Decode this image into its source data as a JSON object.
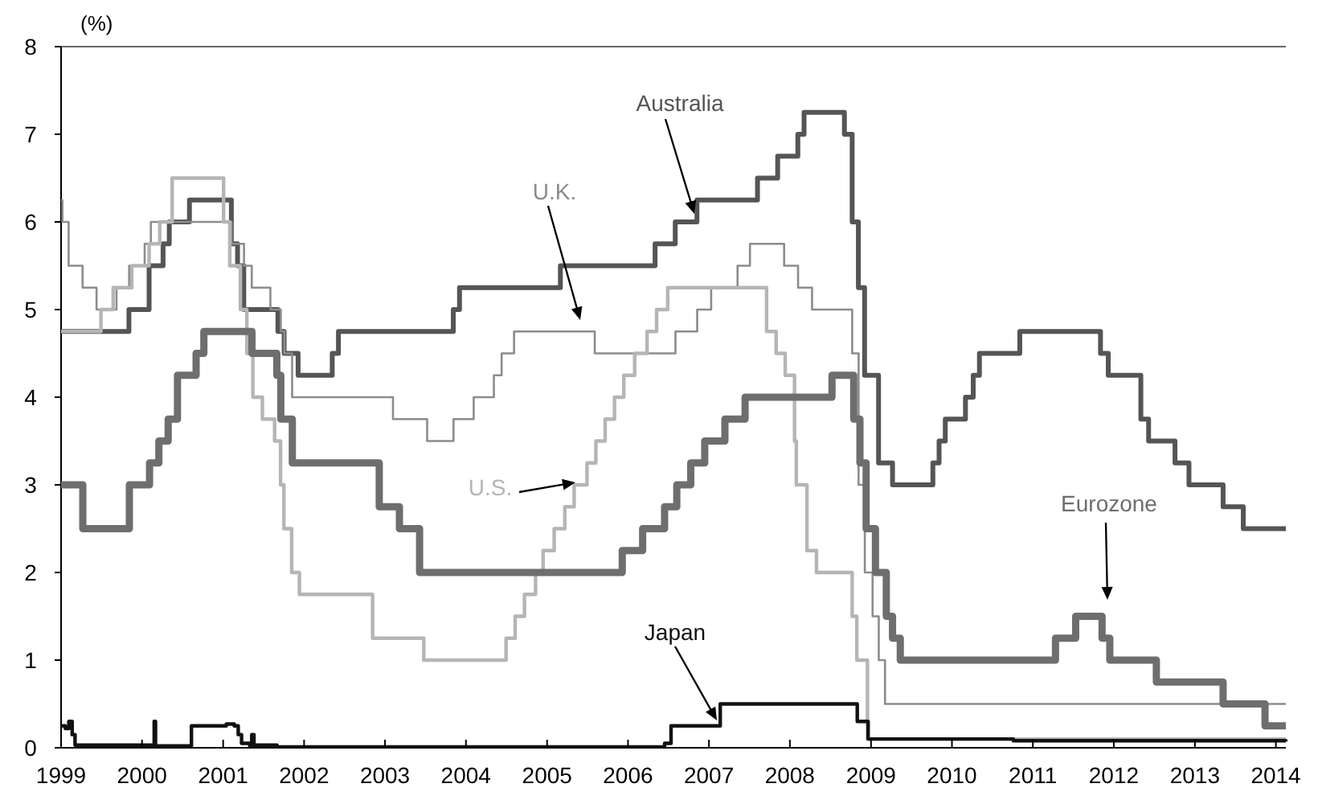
{
  "chart_data": {
    "type": "step",
    "ylabel": "(%)",
    "xlim": [
      "1999-01-01",
      "2014-02-15"
    ],
    "xticks": [
      "1999",
      "2000",
      "2001",
      "2002",
      "2003",
      "2004",
      "2005",
      "2006",
      "2007",
      "2008",
      "2009",
      "2010",
      "2011",
      "2012",
      "2013",
      "2014"
    ],
    "ylim": [
      0,
      8
    ],
    "yticks": [
      0,
      1,
      2,
      3,
      4,
      5,
      6,
      7,
      8
    ],
    "grid": false,
    "marker": "none",
    "line_style": "solid",
    "series": [
      {
        "name": "Australia",
        "color": "#555555",
        "x": [
          "1999-01-01",
          "1999-11-03",
          "2000-02-02",
          "2000-04-05",
          "2000-05-03",
          "2000-08-02",
          "2001-02-07",
          "2001-03-07",
          "2001-04-04",
          "2001-09-05",
          "2001-10-03",
          "2001-12-05",
          "2002-05-08",
          "2002-06-05",
          "2003-11-05",
          "2003-12-03",
          "2005-03-02",
          "2006-05-03",
          "2006-08-02",
          "2006-11-08",
          "2007-08-08",
          "2007-11-07",
          "2008-02-06",
          "2008-03-05",
          "2008-09-03",
          "2008-10-08",
          "2008-11-05",
          "2008-12-03",
          "2009-02-04",
          "2009-04-08",
          "2009-10-07",
          "2009-11-04",
          "2009-12-02",
          "2010-03-03",
          "2010-04-07",
          "2010-05-05",
          "2010-11-03",
          "2011-11-02",
          "2011-12-07",
          "2012-05-02",
          "2012-06-06",
          "2012-10-03",
          "2012-12-05",
          "2013-05-08",
          "2013-08-07",
          "2014-02-15"
        ],
        "values": [
          4.75,
          5.0,
          5.5,
          5.75,
          6.0,
          6.25,
          5.75,
          5.5,
          5.0,
          4.75,
          4.5,
          4.25,
          4.5,
          4.75,
          5.0,
          5.25,
          5.5,
          5.75,
          6.0,
          6.25,
          6.5,
          6.75,
          7.0,
          7.25,
          7.0,
          6.0,
          5.25,
          4.25,
          3.25,
          3.0,
          3.25,
          3.5,
          3.75,
          4.0,
          4.25,
          4.5,
          4.75,
          4.5,
          4.25,
          3.75,
          3.5,
          3.25,
          3.0,
          2.75,
          2.5,
          2.5
        ]
      },
      {
        "name": "U.K.",
        "color": "#8c8c8c",
        "x": [
          "1999-01-01",
          "1999-01-07",
          "1999-02-04",
          "1999-04-08",
          "1999-06-10",
          "1999-09-08",
          "1999-11-04",
          "2000-01-13",
          "2000-02-10",
          "2001-02-08",
          "2001-04-05",
          "2001-05-10",
          "2001-08-02",
          "2001-09-18",
          "2001-10-04",
          "2001-11-08",
          "2003-02-06",
          "2003-07-10",
          "2003-11-06",
          "2004-02-05",
          "2004-05-06",
          "2004-06-10",
          "2004-08-05",
          "2005-08-04",
          "2006-08-03",
          "2006-11-09",
          "2007-01-11",
          "2007-05-10",
          "2007-07-05",
          "2007-12-06",
          "2008-02-07",
          "2008-04-10",
          "2008-10-08",
          "2008-11-06",
          "2008-12-04",
          "2009-01-08",
          "2009-02-05",
          "2009-03-05",
          "2014-02-15"
        ],
        "values": [
          6.25,
          6.0,
          5.5,
          5.25,
          5.0,
          5.25,
          5.5,
          5.75,
          6.0,
          5.75,
          5.5,
          5.25,
          5.0,
          4.75,
          4.5,
          4.0,
          3.75,
          3.5,
          3.75,
          4.0,
          4.25,
          4.5,
          4.75,
          4.5,
          4.75,
          5.0,
          5.25,
          5.5,
          5.75,
          5.5,
          5.25,
          5.0,
          4.5,
          3.0,
          2.0,
          1.5,
          1.0,
          0.5,
          0.5
        ]
      },
      {
        "name": "U.S.",
        "color": "#b5b5b5",
        "x": [
          "1999-01-01",
          "1999-06-30",
          "1999-08-24",
          "1999-11-16",
          "2000-02-02",
          "2000-03-21",
          "2000-05-16",
          "2001-01-03",
          "2001-01-31",
          "2001-03-20",
          "2001-04-18",
          "2001-05-15",
          "2001-06-27",
          "2001-08-21",
          "2001-09-17",
          "2001-10-02",
          "2001-11-06",
          "2001-12-11",
          "2002-11-06",
          "2003-06-25",
          "2004-06-30",
          "2004-08-10",
          "2004-09-21",
          "2004-11-10",
          "2004-12-14",
          "2005-02-02",
          "2005-03-22",
          "2005-05-03",
          "2005-06-30",
          "2005-08-09",
          "2005-09-20",
          "2005-11-01",
          "2005-12-13",
          "2006-01-31",
          "2006-03-28",
          "2006-05-10",
          "2006-06-29",
          "2007-09-18",
          "2007-10-31",
          "2007-12-11",
          "2008-01-22",
          "2008-01-30",
          "2008-03-18",
          "2008-04-30",
          "2008-10-08",
          "2008-10-29",
          "2008-12-16",
          "2014-02-15"
        ],
        "values": [
          4.75,
          5.0,
          5.25,
          5.5,
          5.75,
          6.0,
          6.5,
          6.0,
          5.5,
          5.0,
          4.5,
          4.0,
          3.75,
          3.5,
          3.0,
          2.5,
          2.0,
          1.75,
          1.25,
          1.0,
          1.25,
          1.5,
          1.75,
          2.0,
          2.25,
          2.5,
          2.75,
          3.0,
          3.25,
          3.5,
          3.75,
          4.0,
          4.25,
          4.5,
          4.75,
          5.0,
          5.25,
          4.75,
          4.5,
          4.25,
          3.5,
          3.0,
          2.25,
          2.0,
          1.5,
          1.0,
          0.1,
          0.1
        ]
      },
      {
        "name": "Eurozone",
        "color": "#6e6e6e",
        "x": [
          "1999-01-01",
          "1999-04-09",
          "1999-11-05",
          "2000-02-04",
          "2000-03-17",
          "2000-04-28",
          "2000-06-09",
          "2000-09-01",
          "2000-10-06",
          "2001-05-11",
          "2001-08-31",
          "2001-09-18",
          "2001-11-09",
          "2002-12-06",
          "2003-03-07",
          "2003-06-06",
          "2005-12-06",
          "2006-03-08",
          "2006-06-15",
          "2006-08-09",
          "2006-10-11",
          "2006-12-13",
          "2007-03-14",
          "2007-06-13",
          "2008-07-09",
          "2008-10-15",
          "2008-11-12",
          "2008-12-10",
          "2009-01-21",
          "2009-03-11",
          "2009-04-08",
          "2009-05-13",
          "2011-04-13",
          "2011-07-13",
          "2011-11-09",
          "2011-12-14",
          "2012-07-11",
          "2013-05-08",
          "2013-11-13",
          "2014-02-15"
        ],
        "values": [
          3.0,
          2.5,
          3.0,
          3.25,
          3.5,
          3.75,
          4.25,
          4.5,
          4.75,
          4.5,
          4.25,
          3.75,
          3.25,
          2.75,
          2.5,
          2.0,
          2.25,
          2.5,
          2.75,
          3.0,
          3.25,
          3.5,
          3.75,
          4.0,
          4.25,
          3.75,
          3.25,
          2.5,
          2.0,
          1.5,
          1.25,
          1.0,
          1.25,
          1.5,
          1.25,
          1.0,
          0.75,
          0.5,
          0.25,
          0.25
        ]
      },
      {
        "name": "Japan",
        "color": "#111111",
        "x": [
          "1999-01-01",
          "1999-01-20",
          "1999-02-05",
          "1999-02-20",
          "1999-03-05",
          "2000-02-20",
          "2000-02-25",
          "2000-03-02",
          "2000-08-11",
          "2000-12-15",
          "2001-01-15",
          "2001-02-20",
          "2001-03-10",
          "2001-03-25",
          "2001-05-01",
          "2001-05-10",
          "2001-05-20",
          "2001-09-01",
          "2006-06-01",
          "2006-06-15",
          "2006-07-14",
          "2007-02-21",
          "2008-10-31",
          "2008-12-19",
          "2010-10-05",
          "2014-02-15"
        ],
        "values": [
          0.25,
          0.22,
          0.3,
          0.15,
          0.03,
          0.03,
          0.3,
          0.02,
          0.25,
          0.25,
          0.27,
          0.25,
          0.15,
          0.05,
          0.02,
          0.15,
          0.03,
          0.01,
          0.01,
          0.05,
          0.25,
          0.5,
          0.3,
          0.1,
          0.08,
          0.07
        ]
      }
    ]
  }
}
